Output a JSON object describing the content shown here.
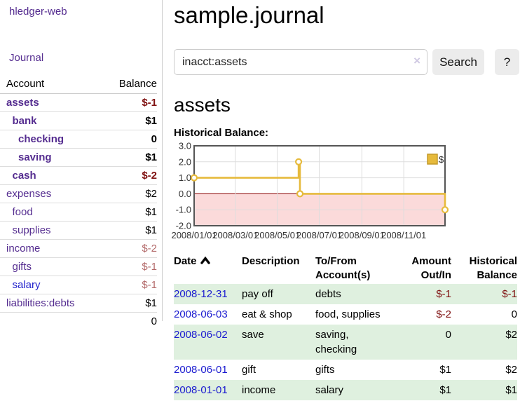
{
  "colors": {
    "accent_purple": "#552d90",
    "link_blue": "#2323cc",
    "date_link_blue": "#1b1bd0",
    "negative_dark_red": "#7f1010",
    "negative_muted_rose": "#b36a6a",
    "row_green": "#dff0df",
    "chart_gold": "#e6ba3c",
    "chart_negative_fill": "#fbdada",
    "chart_zero_line": "#8b0000"
  },
  "sidebar": {
    "brand": "hledger-web",
    "journal_link": "Journal",
    "accounts_table": {
      "headers": {
        "account": "Account",
        "balance": "Balance"
      },
      "rows": [
        {
          "name": "assets",
          "balance": "$-1",
          "indent": 0,
          "bold": true,
          "balance_style": "neg"
        },
        {
          "name": "bank",
          "balance": "$1",
          "indent": 1,
          "bold": true,
          "balance_style": ""
        },
        {
          "name": "checking",
          "balance": "0",
          "indent": 2,
          "bold": true,
          "balance_style": ""
        },
        {
          "name": "saving",
          "balance": "$1",
          "indent": 2,
          "bold": true,
          "balance_style": ""
        },
        {
          "name": "cash",
          "balance": "$-2",
          "indent": 1,
          "bold": true,
          "balance_style": "neg"
        },
        {
          "name": "expenses",
          "balance": "$2",
          "indent": 0,
          "bold": false,
          "balance_style": ""
        },
        {
          "name": "food",
          "balance": "$1",
          "indent": 1,
          "bold": false,
          "balance_style": ""
        },
        {
          "name": "supplies",
          "balance": "$1",
          "indent": 1,
          "bold": false,
          "balance_style": ""
        },
        {
          "name": "income",
          "balance": "$-2",
          "indent": 0,
          "bold": false,
          "balance_style": "rose"
        },
        {
          "name": "gifts",
          "balance": "$-1",
          "indent": 1,
          "bold": false,
          "balance_style": "rose"
        },
        {
          "name": "salary",
          "balance": "$-1",
          "indent": 1,
          "bold": false,
          "balance_style": "rose",
          "link_color": "blue"
        },
        {
          "name": "liabilities:debts",
          "balance": "$1",
          "indent": 0,
          "bold": false,
          "balance_style": ""
        }
      ],
      "total": "0"
    }
  },
  "header": {
    "title": "sample.journal"
  },
  "search": {
    "value": "inacct:assets",
    "clear_icon": "×",
    "button_label": "Search",
    "help_label": "?"
  },
  "account_page": {
    "heading": "assets",
    "chart_label": "Historical Balance:"
  },
  "chart_data": {
    "type": "line",
    "title": "Historical Balance",
    "step": true,
    "series": [
      {
        "name": "$",
        "points": [
          {
            "date": "2008-01-01",
            "value": 1
          },
          {
            "date": "2008-06-01",
            "value": 2
          },
          {
            "date": "2008-06-03",
            "value": 0
          },
          {
            "date": "2008-12-31",
            "value": -1
          }
        ]
      }
    ],
    "x_range": [
      "2008-01-01",
      "2008-12-31"
    ],
    "ylim": [
      -2,
      3
    ],
    "y_ticks": [
      3.0,
      2.0,
      1.0,
      0.0,
      -1.0,
      -2.0
    ],
    "x_ticks": [
      {
        "date": "2008-01-01",
        "label": "2008/01/01"
      },
      {
        "date": "2008-03-01",
        "label": "2008/03/01"
      },
      {
        "date": "2008-05-01",
        "label": "2008/05/01"
      },
      {
        "date": "2008-07-01",
        "label": "2008/07/01"
      },
      {
        "date": "2008-09-01",
        "label": "2008/09/01"
      },
      {
        "date": "2008-11-01",
        "label": "2008/11/01"
      }
    ],
    "grid": true,
    "legend": {
      "label": "$",
      "position": "top-right"
    },
    "negative_region_shaded": true
  },
  "register_table": {
    "sort": {
      "column": "Date",
      "direction": "asc"
    },
    "headers": [
      {
        "lines": [
          "Date"
        ],
        "align": "left",
        "sortable": true
      },
      {
        "lines": [
          "Description"
        ],
        "align": "left"
      },
      {
        "lines": [
          "To/From",
          "Account(s)"
        ],
        "align": "left"
      },
      {
        "lines": [
          "Amount",
          "Out/In"
        ],
        "align": "right"
      },
      {
        "lines": [
          "Historical",
          "Balance"
        ],
        "align": "right"
      }
    ],
    "rows": [
      {
        "date": "2008-12-31",
        "description": "pay off",
        "to_from": "debts",
        "amount": "$-1",
        "amount_style": "neg",
        "balance": "$-1",
        "balance_style": "neg",
        "green": true
      },
      {
        "date": "2008-06-03",
        "description": "eat & shop",
        "to_from": "food, supplies",
        "amount": "$-2",
        "amount_style": "neg",
        "balance": "0",
        "balance_style": "",
        "green": false
      },
      {
        "date": "2008-06-02",
        "description": "save",
        "to_from": "saving,\nchecking",
        "amount": "0",
        "amount_style": "",
        "balance": "$2",
        "balance_style": "",
        "green": true
      },
      {
        "date": "2008-06-01",
        "description": "gift",
        "to_from": "gifts",
        "amount": "$1",
        "amount_style": "",
        "balance": "$2",
        "balance_style": "",
        "green": false
      },
      {
        "date": "2008-01-01",
        "description": "income",
        "to_from": "salary",
        "amount": "$1",
        "amount_style": "",
        "balance": "$1",
        "balance_style": "",
        "green": true
      }
    ]
  }
}
